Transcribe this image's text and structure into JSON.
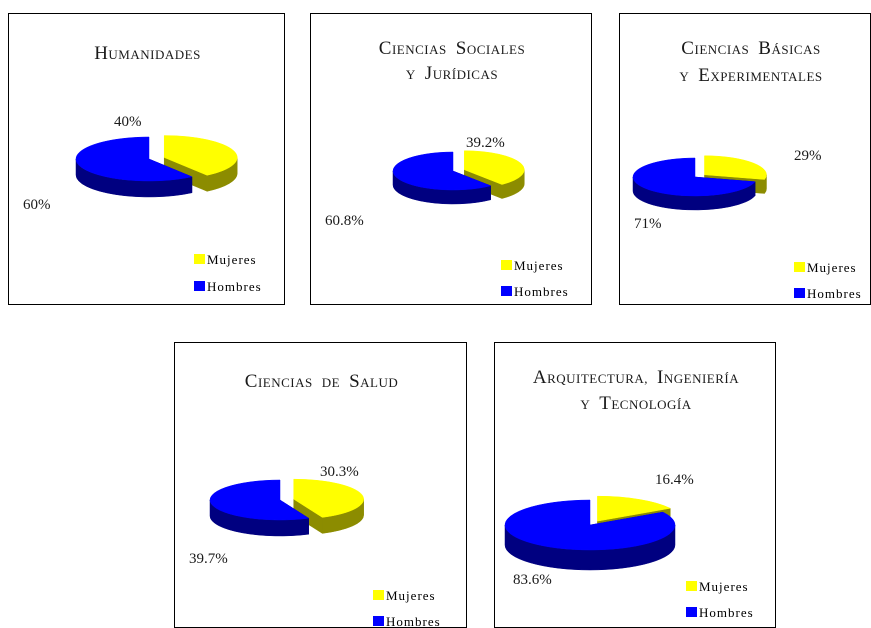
{
  "chart_data": [
    {
      "type": "pie",
      "title_lines": [
        "Humanidades"
      ],
      "slices": [
        {
          "label": "Mujeres",
          "value": 40,
          "value_label": "40%"
        },
        {
          "label": "Hombres",
          "value": 60,
          "value_label": "60%"
        }
      ],
      "legend": [
        "Mujeres",
        "Hombres"
      ]
    },
    {
      "type": "pie",
      "title_lines": [
        "Ciencias Sociales",
        "y Jurídicas"
      ],
      "slices": [
        {
          "label": "Mujeres",
          "value": 39.2,
          "value_label": "39.2%"
        },
        {
          "label": "Hombres",
          "value": 60.8,
          "value_label": "60.8%"
        }
      ],
      "legend": [
        "Mujeres",
        "Hombres"
      ]
    },
    {
      "type": "pie",
      "title_lines": [
        "Ciencias Básicas",
        "y Experimentales"
      ],
      "slices": [
        {
          "label": "Mujeres",
          "value": 29,
          "value_label": "29%"
        },
        {
          "label": "Hombres",
          "value": 71,
          "value_label": "71%"
        }
      ],
      "legend": [
        "Mujeres",
        "Hombres"
      ]
    },
    {
      "type": "pie",
      "title_lines": [
        "Ciencias de Salud"
      ],
      "slices": [
        {
          "label": "Mujeres",
          "value": 30.3,
          "value_label": "30.3%"
        },
        {
          "label": "Hombres",
          "value": 39.7,
          "value_label": "39.7%"
        }
      ],
      "legend": [
        "Mujeres",
        "Hombres"
      ]
    },
    {
      "type": "pie",
      "title_lines": [
        "Arquitectura, Ingeniería",
        "y Tecnología"
      ],
      "slices": [
        {
          "label": "Mujeres",
          "value": 16.4,
          "value_label": "16.4%"
        },
        {
          "label": "Hombres",
          "value": 83.6,
          "value_label": "83.6%"
        }
      ],
      "legend": [
        "Mujeres",
        "Hombres"
      ]
    }
  ],
  "colors": {
    "Mujeres": {
      "top": "#ffff00",
      "side": "#8c8c00"
    },
    "Hombres": {
      "top": "#0000ff",
      "side": "#000080"
    }
  }
}
